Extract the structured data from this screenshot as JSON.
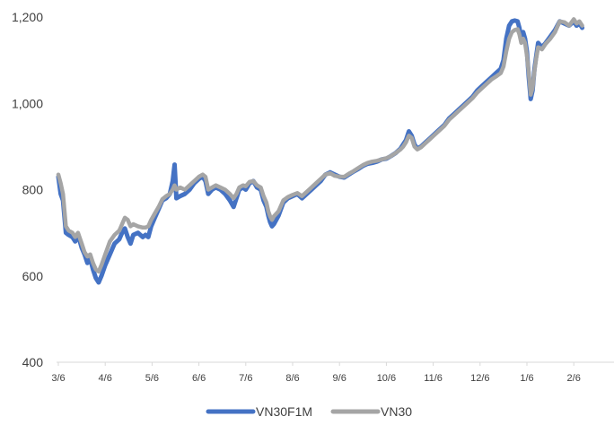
{
  "chart_data": {
    "type": "line",
    "title": "",
    "xlabel": "",
    "ylabel": "",
    "ylim": [
      400,
      1200
    ],
    "yticks": [
      "400",
      "600",
      "800",
      "1,000",
      "1,200"
    ],
    "ytick_values": [
      400,
      600,
      800,
      1000,
      1200
    ],
    "xtick_labels": [
      "3/6",
      "4/6",
      "5/6",
      "6/6",
      "7/6",
      "8/6",
      "9/6",
      "10/6",
      "11/6",
      "12/6",
      "1/6",
      "2/6"
    ],
    "grid": false,
    "legend_position": "bottom",
    "series": [
      {
        "name": "VN30F1M",
        "color": "#4472c4",
        "points": [
          [
            0.0,
            830
          ],
          [
            0.05,
            790
          ],
          [
            0.1,
            775
          ],
          [
            0.16,
            700
          ],
          [
            0.22,
            695
          ],
          [
            0.3,
            690
          ],
          [
            0.36,
            680
          ],
          [
            0.42,
            695
          ],
          [
            0.5,
            665
          ],
          [
            0.56,
            650
          ],
          [
            0.62,
            630
          ],
          [
            0.68,
            640
          ],
          [
            0.74,
            615
          ],
          [
            0.8,
            595
          ],
          [
            0.86,
            585
          ],
          [
            0.92,
            600
          ],
          [
            1.0,
            625
          ],
          [
            1.1,
            650
          ],
          [
            1.2,
            675
          ],
          [
            1.3,
            685
          ],
          [
            1.36,
            700
          ],
          [
            1.42,
            710
          ],
          [
            1.48,
            690
          ],
          [
            1.54,
            675
          ],
          [
            1.6,
            695
          ],
          [
            1.7,
            700
          ],
          [
            1.8,
            690
          ],
          [
            1.86,
            695
          ],
          [
            1.92,
            690
          ],
          [
            1.98,
            715
          ],
          [
            2.06,
            735
          ],
          [
            2.14,
            755
          ],
          [
            2.22,
            775
          ],
          [
            2.3,
            780
          ],
          [
            2.38,
            790
          ],
          [
            2.44,
            820
          ],
          [
            2.48,
            858
          ],
          [
            2.52,
            780
          ],
          [
            2.6,
            785
          ],
          [
            2.7,
            790
          ],
          [
            2.8,
            800
          ],
          [
            2.9,
            815
          ],
          [
            3.0,
            825
          ],
          [
            3.08,
            830
          ],
          [
            3.14,
            820
          ],
          [
            3.2,
            790
          ],
          [
            3.28,
            800
          ],
          [
            3.36,
            805
          ],
          [
            3.46,
            800
          ],
          [
            3.56,
            790
          ],
          [
            3.66,
            775
          ],
          [
            3.74,
            760
          ],
          [
            3.8,
            780
          ],
          [
            3.86,
            800
          ],
          [
            3.94,
            805
          ],
          [
            4.0,
            800
          ],
          [
            4.08,
            815
          ],
          [
            4.16,
            820
          ],
          [
            4.24,
            805
          ],
          [
            4.32,
            800
          ],
          [
            4.38,
            775
          ],
          [
            4.44,
            760
          ],
          [
            4.48,
            740
          ],
          [
            4.52,
            725
          ],
          [
            4.56,
            715
          ],
          [
            4.6,
            720
          ],
          [
            4.7,
            740
          ],
          [
            4.8,
            770
          ],
          [
            4.9,
            780
          ],
          [
            5.0,
            785
          ],
          [
            5.1,
            790
          ],
          [
            5.2,
            780
          ],
          [
            5.3,
            790
          ],
          [
            5.4,
            800
          ],
          [
            5.5,
            810
          ],
          [
            5.6,
            820
          ],
          [
            5.7,
            835
          ],
          [
            5.8,
            840
          ],
          [
            5.9,
            835
          ],
          [
            6.0,
            830
          ],
          [
            6.1,
            828
          ],
          [
            6.2,
            835
          ],
          [
            6.3,
            842
          ],
          [
            6.4,
            848
          ],
          [
            6.5,
            855
          ],
          [
            6.6,
            860
          ],
          [
            6.7,
            862
          ],
          [
            6.8,
            865
          ],
          [
            6.9,
            870
          ],
          [
            7.0,
            872
          ],
          [
            7.1,
            878
          ],
          [
            7.2,
            885
          ],
          [
            7.3,
            895
          ],
          [
            7.36,
            905
          ],
          [
            7.42,
            915
          ],
          [
            7.48,
            935
          ],
          [
            7.54,
            925
          ],
          [
            7.6,
            905
          ],
          [
            7.66,
            895
          ],
          [
            7.74,
            900
          ],
          [
            7.84,
            910
          ],
          [
            7.94,
            920
          ],
          [
            8.04,
            930
          ],
          [
            8.14,
            940
          ],
          [
            8.24,
            950
          ],
          [
            8.34,
            965
          ],
          [
            8.44,
            975
          ],
          [
            8.54,
            985
          ],
          [
            8.64,
            995
          ],
          [
            8.74,
            1005
          ],
          [
            8.84,
            1015
          ],
          [
            8.94,
            1030
          ],
          [
            9.04,
            1040
          ],
          [
            9.14,
            1050
          ],
          [
            9.24,
            1060
          ],
          [
            9.34,
            1070
          ],
          [
            9.44,
            1080
          ],
          [
            9.5,
            1100
          ],
          [
            9.56,
            1150
          ],
          [
            9.62,
            1180
          ],
          [
            9.68,
            1190
          ],
          [
            9.74,
            1192
          ],
          [
            9.8,
            1190
          ],
          [
            9.84,
            1175
          ],
          [
            9.88,
            1150
          ],
          [
            9.92,
            1165
          ],
          [
            9.96,
            1150
          ],
          [
            10.0,
            1120
          ],
          [
            10.04,
            1060
          ],
          [
            10.08,
            1010
          ],
          [
            10.12,
            1030
          ],
          [
            10.16,
            1080
          ],
          [
            10.2,
            1110
          ],
          [
            10.24,
            1140
          ],
          [
            10.28,
            1135
          ],
          [
            10.32,
            1130
          ],
          [
            10.4,
            1140
          ],
          [
            10.5,
            1155
          ],
          [
            10.6,
            1170
          ],
          [
            10.7,
            1190
          ],
          [
            10.8,
            1185
          ],
          [
            10.9,
            1180
          ],
          [
            11.0,
            1190
          ],
          [
            11.06,
            1180
          ],
          [
            11.12,
            1185
          ],
          [
            11.18,
            1175
          ]
        ]
      },
      {
        "name": "VN30",
        "color": "#a5a5a5",
        "points": [
          [
            0.0,
            835
          ],
          [
            0.05,
            815
          ],
          [
            0.1,
            790
          ],
          [
            0.16,
            715
          ],
          [
            0.22,
            705
          ],
          [
            0.3,
            700
          ],
          [
            0.36,
            690
          ],
          [
            0.42,
            700
          ],
          [
            0.5,
            675
          ],
          [
            0.56,
            655
          ],
          [
            0.62,
            645
          ],
          [
            0.68,
            650
          ],
          [
            0.74,
            630
          ],
          [
            0.8,
            615
          ],
          [
            0.86,
            610
          ],
          [
            0.92,
            625
          ],
          [
            1.0,
            650
          ],
          [
            1.1,
            680
          ],
          [
            1.2,
            695
          ],
          [
            1.3,
            705
          ],
          [
            1.36,
            720
          ],
          [
            1.42,
            735
          ],
          [
            1.48,
            730
          ],
          [
            1.54,
            715
          ],
          [
            1.6,
            720
          ],
          [
            1.7,
            715
          ],
          [
            1.8,
            712
          ],
          [
            1.86,
            712
          ],
          [
            1.92,
            715
          ],
          [
            1.98,
            730
          ],
          [
            2.06,
            745
          ],
          [
            2.14,
            760
          ],
          [
            2.22,
            778
          ],
          [
            2.3,
            785
          ],
          [
            2.38,
            790
          ],
          [
            2.44,
            800
          ],
          [
            2.48,
            810
          ],
          [
            2.52,
            800
          ],
          [
            2.6,
            805
          ],
          [
            2.7,
            800
          ],
          [
            2.8,
            810
          ],
          [
            2.9,
            820
          ],
          [
            3.0,
            830
          ],
          [
            3.08,
            835
          ],
          [
            3.14,
            830
          ],
          [
            3.2,
            800
          ],
          [
            3.28,
            805
          ],
          [
            3.36,
            810
          ],
          [
            3.46,
            805
          ],
          [
            3.56,
            800
          ],
          [
            3.66,
            790
          ],
          [
            3.74,
            780
          ],
          [
            3.8,
            790
          ],
          [
            3.86,
            805
          ],
          [
            3.94,
            810
          ],
          [
            4.0,
            808
          ],
          [
            4.08,
            818
          ],
          [
            4.16,
            820
          ],
          [
            4.24,
            810
          ],
          [
            4.32,
            805
          ],
          [
            4.38,
            785
          ],
          [
            4.44,
            770
          ],
          [
            4.48,
            750
          ],
          [
            4.52,
            738
          ],
          [
            4.56,
            730
          ],
          [
            4.6,
            738
          ],
          [
            4.7,
            750
          ],
          [
            4.8,
            775
          ],
          [
            4.9,
            783
          ],
          [
            5.0,
            788
          ],
          [
            5.1,
            792
          ],
          [
            5.2,
            785
          ],
          [
            5.3,
            795
          ],
          [
            5.4,
            805
          ],
          [
            5.5,
            815
          ],
          [
            5.6,
            825
          ],
          [
            5.7,
            835
          ],
          [
            5.8,
            838
          ],
          [
            5.9,
            832
          ],
          [
            6.0,
            830
          ],
          [
            6.1,
            830
          ],
          [
            6.2,
            837
          ],
          [
            6.3,
            843
          ],
          [
            6.4,
            850
          ],
          [
            6.5,
            857
          ],
          [
            6.6,
            862
          ],
          [
            6.7,
            865
          ],
          [
            6.8,
            867
          ],
          [
            6.9,
            870
          ],
          [
            7.0,
            873
          ],
          [
            7.1,
            878
          ],
          [
            7.2,
            885
          ],
          [
            7.3,
            893
          ],
          [
            7.36,
            900
          ],
          [
            7.42,
            910
          ],
          [
            7.48,
            925
          ],
          [
            7.54,
            920
          ],
          [
            7.6,
            900
          ],
          [
            7.66,
            893
          ],
          [
            7.74,
            898
          ],
          [
            7.84,
            908
          ],
          [
            7.94,
            918
          ],
          [
            8.04,
            928
          ],
          [
            8.14,
            938
          ],
          [
            8.24,
            948
          ],
          [
            8.34,
            962
          ],
          [
            8.44,
            972
          ],
          [
            8.54,
            982
          ],
          [
            8.64,
            992
          ],
          [
            8.74,
            1002
          ],
          [
            8.84,
            1012
          ],
          [
            8.94,
            1025
          ],
          [
            9.04,
            1035
          ],
          [
            9.14,
            1045
          ],
          [
            9.24,
            1055
          ],
          [
            9.34,
            1062
          ],
          [
            9.44,
            1070
          ],
          [
            9.5,
            1085
          ],
          [
            9.56,
            1120
          ],
          [
            9.62,
            1150
          ],
          [
            9.68,
            1165
          ],
          [
            9.74,
            1170
          ],
          [
            9.8,
            1172
          ],
          [
            9.84,
            1160
          ],
          [
            9.88,
            1140
          ],
          [
            9.92,
            1150
          ],
          [
            9.96,
            1140
          ],
          [
            10.0,
            1110
          ],
          [
            10.04,
            1070
          ],
          [
            10.08,
            1020
          ],
          [
            10.12,
            1035
          ],
          [
            10.16,
            1075
          ],
          [
            10.2,
            1105
          ],
          [
            10.24,
            1130
          ],
          [
            10.28,
            1128
          ],
          [
            10.32,
            1125
          ],
          [
            10.4,
            1138
          ],
          [
            10.5,
            1150
          ],
          [
            10.6,
            1165
          ],
          [
            10.7,
            1190
          ],
          [
            10.8,
            1188
          ],
          [
            10.9,
            1180
          ],
          [
            11.0,
            1195
          ],
          [
            11.06,
            1185
          ],
          [
            11.12,
            1190
          ],
          [
            11.18,
            1180
          ]
        ]
      }
    ]
  }
}
